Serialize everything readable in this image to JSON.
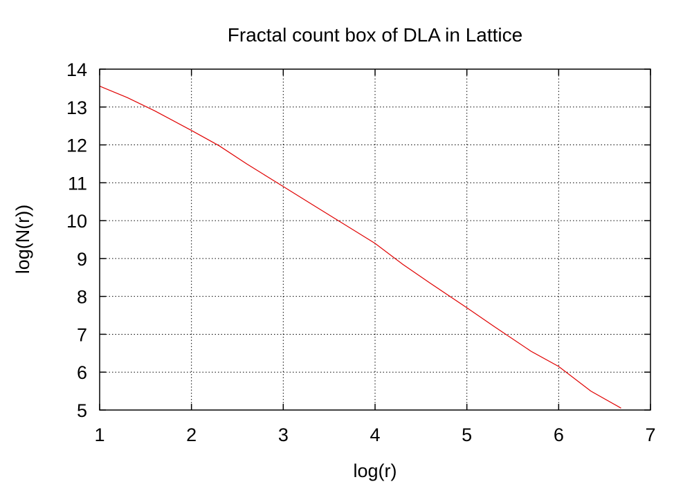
{
  "chart_data": {
    "type": "line",
    "title": "Fractal count box of DLA in Lattice",
    "xlabel": "log(r)",
    "ylabel": "log(N(r))",
    "xlim": [
      1,
      7
    ],
    "ylim": [
      5,
      14
    ],
    "x_ticks": [
      1,
      2,
      3,
      4,
      5,
      6,
      7
    ],
    "y_ticks": [
      5,
      6,
      7,
      8,
      9,
      10,
      11,
      12,
      13,
      14
    ],
    "grid": true,
    "legend": "none",
    "series": [
      {
        "color": "#e00000",
        "x": [
          1.0,
          1.3,
          1.6,
          2.0,
          2.3,
          2.6,
          3.0,
          3.3,
          3.6,
          4.0,
          4.3,
          4.6,
          5.0,
          5.3,
          5.7,
          6.0,
          6.35,
          6.68
        ],
        "y": [
          13.55,
          13.25,
          12.9,
          12.38,
          11.98,
          11.5,
          10.9,
          10.45,
          10.0,
          9.4,
          8.85,
          8.35,
          7.7,
          7.2,
          6.55,
          6.15,
          5.5,
          5.05
        ]
      }
    ]
  }
}
